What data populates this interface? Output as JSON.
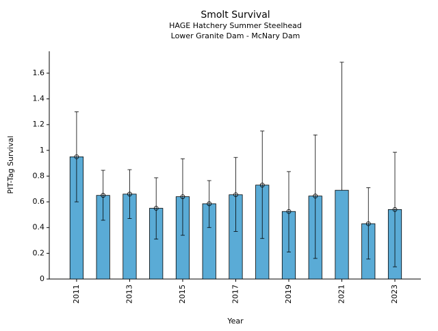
{
  "chart_data": {
    "type": "bar",
    "title": "Smolt Survival",
    "subtitle": "HAGE Hatchery Summer Steelhead",
    "subtitle2": "Lower Granite Dam - McNary Dam",
    "x_label": "Year",
    "y_label": "PIT-Tag Survival",
    "x": [
      2011,
      2012,
      2013,
      2014,
      2015,
      2016,
      2017,
      2018,
      2019,
      2020,
      2021,
      2022,
      2023
    ],
    "values": [
      0.95,
      0.65,
      0.66,
      0.55,
      0.64,
      0.585,
      0.655,
      0.73,
      0.525,
      0.645,
      0.69,
      0.43,
      0.54
    ],
    "lower": [
      0.6,
      0.457,
      0.47,
      0.31,
      0.34,
      0.4,
      0.37,
      0.315,
      0.21,
      0.16,
      null,
      0.155,
      0.095
    ],
    "upper": [
      1.3,
      0.845,
      0.85,
      0.787,
      0.935,
      0.765,
      0.945,
      1.15,
      0.835,
      1.12,
      1.685,
      0.71,
      0.985
    ],
    "color": "#5aabd6",
    "xlim": [
      2009.97,
      2023.98
    ],
    "xticks": [
      2011,
      2013,
      2015,
      2017,
      2019,
      2021,
      2023
    ],
    "ylim": [
      0,
      1.77
    ],
    "yticks": [
      0,
      0.2,
      0.4,
      0.6,
      0.8,
      1,
      1.2,
      1.4,
      1.6
    ]
  }
}
